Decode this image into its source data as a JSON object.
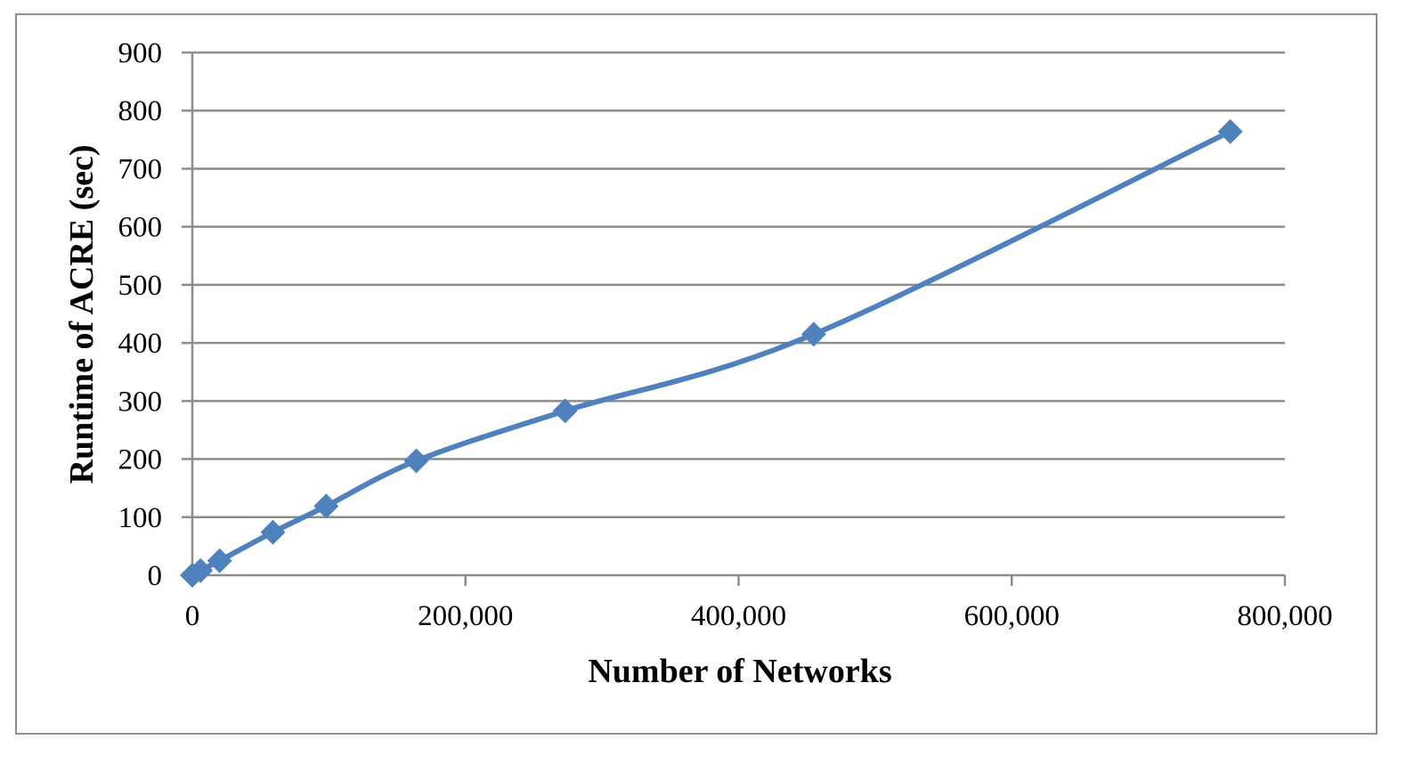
{
  "chart_data": {
    "type": "line",
    "title": "",
    "xlabel": "Number of Networks",
    "ylabel": "Runtime of ACRE (sec)",
    "xlim": [
      0,
      800000
    ],
    "ylim": [
      0,
      900
    ],
    "x_ticks": [
      0,
      200000,
      400000,
      600000,
      800000
    ],
    "x_tick_labels": [
      "0",
      "200,000",
      "400,000",
      "600,000",
      "800,000"
    ],
    "y_ticks": [
      0,
      100,
      200,
      300,
      400,
      500,
      600,
      700,
      800,
      900
    ],
    "y_tick_labels": [
      "0",
      "100",
      "200",
      "300",
      "400",
      "500",
      "600",
      "700",
      "800",
      "900"
    ],
    "grid": "horizontal",
    "smoothed": true,
    "marker": "diamond",
    "series": [
      {
        "color": "#4f81bd",
        "x": [
          0,
          6000,
          20000,
          59000,
          98000,
          164000,
          273000,
          455000,
          760000
        ],
        "y": [
          0,
          8,
          25,
          74,
          119,
          197,
          283,
          415,
          764
        ]
      }
    ]
  },
  "colors": {
    "series": "#4f81bd",
    "grid": "#8c8c8c",
    "axis": "#8c8c8c",
    "frame": "#8c8c8c"
  }
}
